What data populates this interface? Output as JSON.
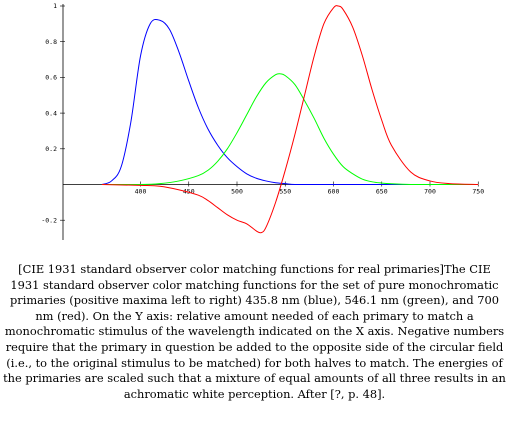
{
  "chart_data": {
    "type": "line",
    "title": "",
    "xlabel": "",
    "ylabel": "",
    "xlim": [
      340,
      770
    ],
    "ylim": [
      -0.3,
      1.02
    ],
    "x_ticks": [
      400,
      450,
      500,
      550,
      600,
      650,
      700,
      750
    ],
    "x_tick_labels": [
      "400",
      "450",
      "500",
      "550",
      "600",
      "650",
      "700",
      "750"
    ],
    "y_ticks": [
      -0.2,
      0.2,
      0.4,
      0.6,
      0.8,
      1
    ],
    "y_tick_labels": [
      "-0.2",
      "0.2",
      "0.4",
      "0.6",
      "0.8",
      "1"
    ],
    "grid": false,
    "legend": "none",
    "series": [
      {
        "color": "#0000ff",
        "x": [
          360,
          370,
          380,
          390,
          400,
          410,
          420,
          430,
          440,
          450,
          460,
          470,
          480,
          490,
          500,
          510,
          520,
          530,
          540,
          550,
          560,
          580,
          600,
          650,
          700,
          750
        ],
        "y": [
          0.0,
          0.02,
          0.1,
          0.35,
          0.72,
          0.9,
          0.92,
          0.87,
          0.74,
          0.58,
          0.43,
          0.31,
          0.22,
          0.15,
          0.1,
          0.06,
          0.035,
          0.02,
          0.01,
          0.005,
          0.0,
          0.0,
          0.0,
          0.0,
          0.0,
          0.0
        ]
      },
      {
        "color": "#00ff00",
        "x": [
          360,
          400,
          420,
          440,
          460,
          470,
          480,
          490,
          500,
          510,
          520,
          530,
          540,
          545,
          550,
          560,
          570,
          580,
          590,
          600,
          610,
          620,
          630,
          640,
          650,
          660,
          680,
          700,
          750
        ],
        "y": [
          0.0,
          0.0,
          0.005,
          0.02,
          0.05,
          0.08,
          0.13,
          0.2,
          0.29,
          0.39,
          0.49,
          0.57,
          0.615,
          0.62,
          0.61,
          0.56,
          0.47,
          0.37,
          0.26,
          0.17,
          0.1,
          0.06,
          0.03,
          0.015,
          0.008,
          0.004,
          0.0,
          0.0,
          0.0
        ]
      },
      {
        "color": "#ff0000",
        "x": [
          360,
          400,
          420,
          440,
          460,
          470,
          480,
          490,
          500,
          510,
          520,
          525,
          530,
          540,
          550,
          560,
          570,
          580,
          590,
          600,
          605,
          610,
          620,
          630,
          640,
          650,
          660,
          680,
          700,
          720,
          750
        ],
        "y": [
          0.0,
          -0.005,
          -0.01,
          -0.03,
          -0.06,
          -0.09,
          -0.13,
          -0.17,
          -0.2,
          -0.22,
          -0.26,
          -0.27,
          -0.24,
          -0.1,
          0.08,
          0.28,
          0.5,
          0.72,
          0.9,
          0.99,
          1.0,
          0.98,
          0.88,
          0.72,
          0.53,
          0.36,
          0.22,
          0.07,
          0.02,
          0.005,
          0.0
        ]
      }
    ]
  },
  "caption": "[CIE 1931 standard observer color matching functions for real primaries]The CIE 1931 standard observer color matching functions for the set of pure monochromatic primaries (positive maxima left to right) 435.8 nm (blue), 546.1 nm (green), and 700 nm (red). On the Y axis: relative amount needed of each primary to match a monochromatic stimulus of the wavelength indicated on the X axis. Negative numbers require that the primary in question be added to the opposite side of the circular field (i.e., to the original stimulus to be matched) for both halves to match. The energies of the primaries are scaled such that a mixture of equal amounts of all three results in an achromatic white perception. After [?, p. 48]."
}
